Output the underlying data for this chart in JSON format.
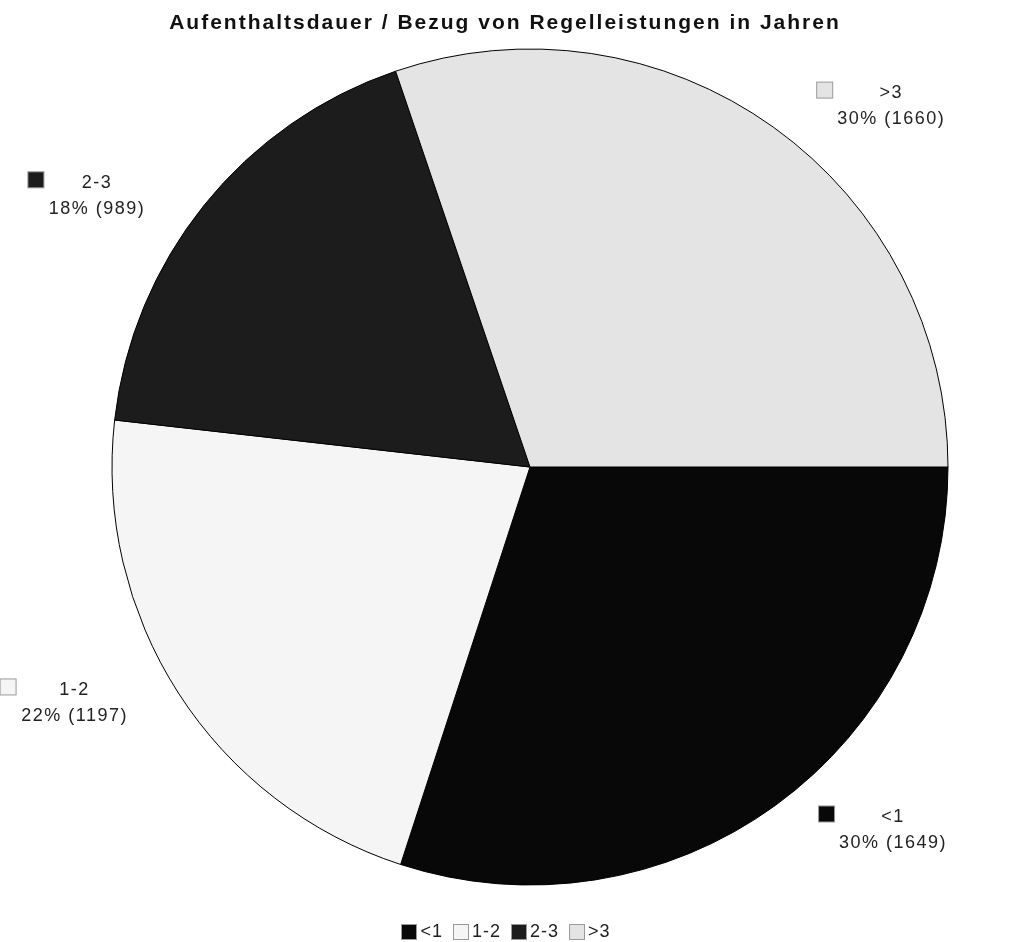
{
  "chart_data": {
    "type": "pie",
    "title": "Aufenthaltsdauer / Bezug von Regelleistungen in Jahren",
    "categories": [
      "<1",
      "1-2",
      "2-3",
      ">3"
    ],
    "values": [
      1649,
      1197,
      989,
      1660
    ],
    "colors": [
      "#080808",
      "#f5f5f5",
      "#1c1c1c",
      "#e4e4e4"
    ],
    "value_labels": [
      "30% (1649)",
      "22% (1197)",
      "18% (989)",
      "30% (1660)"
    ],
    "legend": "bottom"
  }
}
